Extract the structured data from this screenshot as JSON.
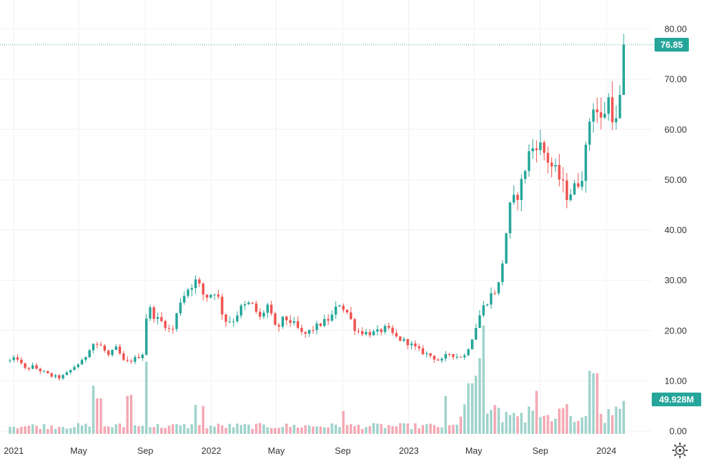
{
  "chart_data": {
    "type": "candlestick",
    "symbol_label": "",
    "y_axis": {
      "ticks": [
        "80.00",
        "70.00",
        "60.00",
        "50.00",
        "40.00",
        "30.00",
        "20.00",
        "10.00",
        "0.00"
      ],
      "tick_values": [
        80,
        70,
        60,
        50,
        40,
        30,
        20,
        10,
        0
      ],
      "range": [
        -0.5,
        82
      ]
    },
    "x_axis": {
      "ticks": [
        "2021",
        "May",
        "Sep",
        "2022",
        "May",
        "Sep",
        "2023",
        "May",
        "Sep",
        "2024"
      ],
      "tick_dates": [
        "2021-01",
        "2021-05",
        "2021-09",
        "2022-01",
        "2022-05",
        "2022-09",
        "2023-01",
        "2023-05",
        "2023-09",
        "2024-01"
      ]
    },
    "last_price": {
      "label": "76.85",
      "value": 76.85
    },
    "last_volume": {
      "label": "49.928M",
      "value": 49.928
    },
    "grid": true,
    "colors": {
      "up": "#26a69a",
      "down": "#ef5350",
      "up_volume": "#9fd3cb",
      "down_volume": "#f4a8b3"
    },
    "note_weekly_bars": "one bar per week",
    "series": [
      {
        "name": "",
        "anchors": [
          [
            "2020-12-25",
            14.0
          ],
          [
            "2021-01-08",
            14.5
          ],
          [
            "2021-01-20",
            12.3
          ],
          [
            "2021-02-05",
            12.8
          ],
          [
            "2021-02-20",
            12.0
          ],
          [
            "2021-03-10",
            11.0
          ],
          [
            "2021-03-28",
            10.6
          ],
          [
            "2021-04-10",
            11.5
          ],
          [
            "2021-04-25",
            13.0
          ],
          [
            "2021-05-10",
            14.0
          ],
          [
            "2021-05-25",
            17.5
          ],
          [
            "2021-06-10",
            17.0
          ],
          [
            "2021-06-25",
            15.0
          ],
          [
            "2021-07-10",
            16.5
          ],
          [
            "2021-07-25",
            13.5
          ],
          [
            "2021-08-15",
            14.5
          ],
          [
            "2021-08-28",
            15.5
          ],
          [
            "2021-09-05",
            25.0
          ],
          [
            "2021-09-20",
            22.5
          ],
          [
            "2021-10-05",
            21.5
          ],
          [
            "2021-10-20",
            19.5
          ],
          [
            "2021-11-05",
            26.0
          ],
          [
            "2021-11-20",
            28.5
          ],
          [
            "2021-12-05",
            30.0
          ],
          [
            "2021-12-20",
            26.5
          ],
          [
            "2022-01-10",
            28.0
          ],
          [
            "2022-01-25",
            22.0
          ],
          [
            "2022-02-10",
            22.0
          ],
          [
            "2022-02-25",
            24.5
          ],
          [
            "2022-03-15",
            25.5
          ],
          [
            "2022-04-01",
            22.5
          ],
          [
            "2022-04-15",
            25.0
          ],
          [
            "2022-05-01",
            20.0
          ],
          [
            "2022-05-15",
            22.5
          ],
          [
            "2022-06-01",
            21.5
          ],
          [
            "2022-06-20",
            19.0
          ],
          [
            "2022-07-10",
            20.5
          ],
          [
            "2022-07-25",
            21.5
          ],
          [
            "2022-08-10",
            22.5
          ],
          [
            "2022-08-25",
            25.5
          ],
          [
            "2022-09-10",
            23.5
          ],
          [
            "2022-09-25",
            20.0
          ],
          [
            "2022-10-15",
            19.5
          ],
          [
            "2022-11-01",
            19.5
          ],
          [
            "2022-11-20",
            20.5
          ],
          [
            "2022-12-10",
            18.5
          ],
          [
            "2023-01-01",
            17.5
          ],
          [
            "2023-01-20",
            16.0
          ],
          [
            "2023-02-10",
            15.0
          ],
          [
            "2023-03-01",
            13.8
          ],
          [
            "2023-03-15",
            15.5
          ],
          [
            "2023-04-01",
            14.8
          ],
          [
            "2023-04-15",
            15.0
          ],
          [
            "2023-05-01",
            19.5
          ],
          [
            "2023-05-15",
            24.0
          ],
          [
            "2023-06-01",
            27.0
          ],
          [
            "2023-06-15",
            28.5
          ],
          [
            "2023-06-25",
            35.0
          ],
          [
            "2023-07-05",
            44.0
          ],
          [
            "2023-07-15",
            46.0
          ],
          [
            "2023-07-25",
            48.0
          ],
          [
            "2023-08-10",
            55.0
          ],
          [
            "2023-08-25",
            57.5
          ],
          [
            "2023-09-05",
            56.0
          ],
          [
            "2023-09-20",
            53.0
          ],
          [
            "2023-10-05",
            50.5
          ],
          [
            "2023-10-20",
            47.0
          ],
          [
            "2023-11-05",
            48.5
          ],
          [
            "2023-11-20",
            52.0
          ],
          [
            "2023-12-01",
            62.0
          ],
          [
            "2023-12-10",
            66.0
          ],
          [
            "2023-12-20",
            61.0
          ],
          [
            "2024-01-05",
            66.0
          ],
          [
            "2024-01-15",
            62.0
          ],
          [
            "2024-01-22",
            60.5
          ],
          [
            "2024-01-29",
            70.0
          ],
          [
            "2024-02-05",
            76.85
          ]
        ]
      }
    ],
    "volume_highlights": [
      [
        "2021-06-01",
        9.0
      ],
      [
        "2021-06-08",
        6.5
      ],
      [
        "2021-08-01",
        7.0
      ],
      [
        "2021-08-08",
        7.2
      ],
      [
        "2021-09-01",
        13.8
      ],
      [
        "2021-12-01",
        5.2
      ],
      [
        "2021-12-15",
        5.0
      ],
      [
        "2022-09-01",
        4.0
      ],
      [
        "2023-03-10",
        7.0
      ],
      [
        "2023-04-25",
        9.5
      ],
      [
        "2023-05-03",
        11.0
      ],
      [
        "2023-05-10",
        14.5
      ],
      [
        "2023-05-18",
        21.0
      ],
      [
        "2023-08-25",
        8.0
      ],
      [
        "2023-12-05",
        12.0
      ],
      [
        "2023-12-12",
        11.5
      ],
      [
        "2024-02-01",
        10.0
      ],
      [
        "2024-02-05",
        6.0
      ]
    ]
  },
  "settings_icon": "gear-icon"
}
